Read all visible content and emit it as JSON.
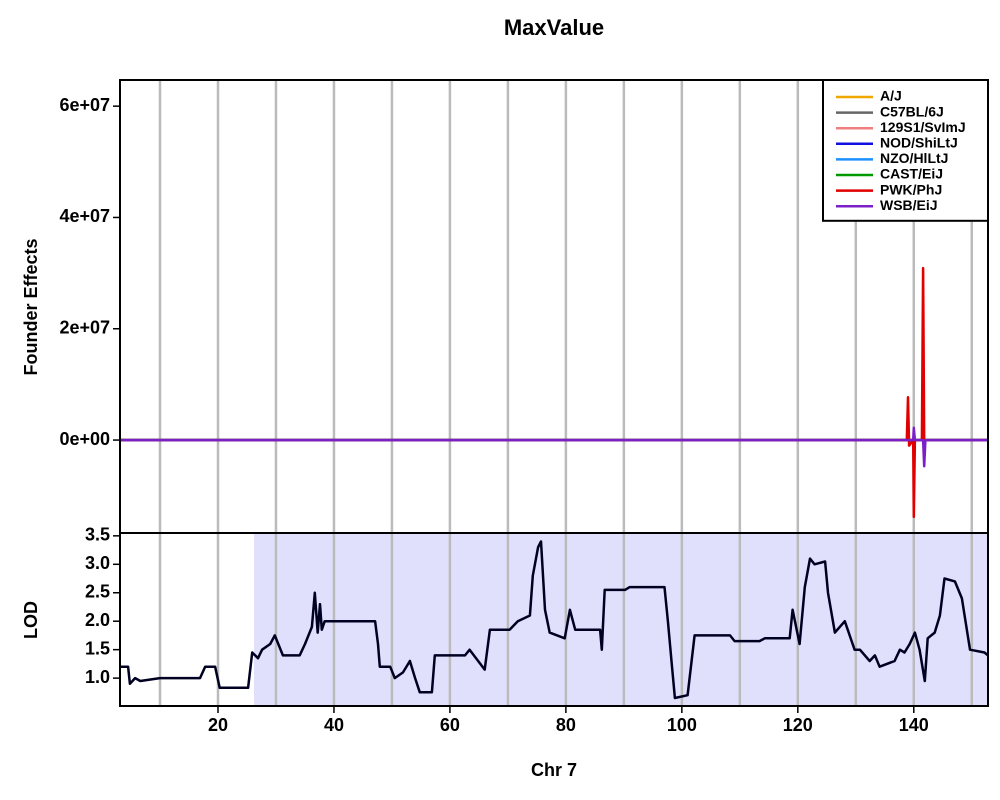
{
  "chart_data": [
    {
      "type": "line",
      "title": "MaxValue",
      "ylabel": "Founder Effects",
      "legend": "topright",
      "grid": true,
      "xlim": [
        3.1,
        152.8
      ],
      "xgrid": [
        10,
        20,
        30,
        40,
        50,
        60,
        70,
        80,
        90,
        100,
        110,
        120,
        130,
        140,
        150
      ],
      "ylim": [
        -16700000,
        64700000
      ],
      "yticks": [
        {
          "value": 0,
          "label": "0e+00"
        },
        {
          "value": 20000000,
          "label": "2e+07"
        },
        {
          "value": 40000000,
          "label": "4e+07"
        },
        {
          "value": 60000000,
          "label": "6e+07"
        }
      ],
      "x": [
        3.1,
        138.8,
        139.0,
        139.2,
        139.9,
        140.0,
        140.2,
        141.4,
        141.6,
        141.8,
        142.0,
        152.8
      ],
      "series": [
        {
          "name": "A/J",
          "color": "#f0a800",
          "values": [
            0,
            0,
            0,
            0,
            0,
            0,
            0,
            0,
            0,
            0,
            0,
            0
          ]
        },
        {
          "name": "C57BL/6J",
          "color": "#666666",
          "values": [
            0,
            0,
            0,
            0,
            0,
            0,
            0,
            0,
            0,
            0,
            0,
            0
          ]
        },
        {
          "name": "129S1/SvImJ",
          "color": "#f08080",
          "values": [
            0,
            0,
            0,
            0,
            0,
            0,
            0,
            0,
            0,
            0,
            0,
            0
          ]
        },
        {
          "name": "NOD/ShiLtJ",
          "color": "#1010e0",
          "values": [
            0,
            0,
            0,
            0,
            0,
            0,
            0,
            0,
            0,
            0,
            0,
            0
          ]
        },
        {
          "name": "NZO/HlLtJ",
          "color": "#1e90ff",
          "values": [
            0,
            0,
            0,
            0,
            0,
            0,
            0,
            0,
            0,
            0,
            0,
            0
          ]
        },
        {
          "name": "CAST/EiJ",
          "color": "#009900",
          "values": [
            0,
            0,
            0,
            0,
            0,
            0,
            0,
            0,
            0,
            0,
            0,
            0
          ]
        },
        {
          "name": "PWK/PhJ",
          "color": "#e00000",
          "values": [
            0,
            0,
            7700000,
            -1000000,
            0,
            -13800000,
            0,
            0,
            30900000,
            -500000,
            0,
            0
          ]
        },
        {
          "name": "WSB/EiJ",
          "color": "#7b20c8",
          "values": [
            0,
            0,
            0,
            0,
            0,
            2200000,
            0,
            0,
            0,
            -4700000,
            0,
            0
          ]
        }
      ]
    },
    {
      "type": "line",
      "ylabel": "LOD",
      "xlabel": "Chr 7",
      "grid": true,
      "color": "#000022",
      "shaded_region": {
        "from": 26.2,
        "to": 152.8,
        "color": "#e0e0fc"
      },
      "xlim": [
        3.1,
        152.8
      ],
      "xgrid": [
        10,
        20,
        30,
        40,
        50,
        60,
        70,
        80,
        90,
        100,
        110,
        120,
        130,
        140,
        150
      ],
      "xticks": [
        20,
        40,
        60,
        80,
        100,
        120,
        140
      ],
      "ylim": [
        0.51,
        3.55
      ],
      "yticks": [
        {
          "value": 1,
          "label": "1.0"
        },
        1.5,
        {
          "value": 2,
          "label": "2.0"
        },
        2.5,
        {
          "value": 3,
          "label": "3.0"
        },
        3.5
      ],
      "x": [
        3.1,
        4.5,
        4.8,
        5.7,
        6.6,
        10,
        16.9,
        17.8,
        19.5,
        20.3,
        25.2,
        25.9,
        26.9,
        27.6,
        29,
        29.8,
        31.2,
        34.1,
        35,
        36.2,
        36.7,
        37.2,
        37.6,
        37.9,
        38.4,
        47.1,
        47.6,
        47.9,
        49.7,
        50.5,
        51.9,
        53.1,
        54,
        54.8,
        56.9,
        57.4,
        62.6,
        63.4,
        66,
        66.9,
        70.3,
        71.7,
        73.8,
        74.3,
        75.2,
        75.7,
        76.4,
        77.2,
        79.8,
        80.7,
        81.6,
        85.9,
        86.2,
        86.7,
        90.2,
        91,
        97,
        97.6,
        98.3,
        98.8,
        101,
        102.2,
        108.3,
        109.1,
        113.4,
        114.3,
        118.6,
        119.1,
        120.3,
        121.2,
        122.1,
        122.9,
        124.7,
        125.2,
        126.4,
        128.1,
        129.8,
        130.7,
        132.4,
        133.3,
        134.1,
        136.7,
        137.6,
        138.4,
        139.3,
        140.2,
        141,
        141.9,
        142.4,
        143.6,
        144.5,
        145.3,
        147.1,
        148.3,
        149.7,
        152.2,
        152.8
      ],
      "values": [
        1.2,
        1.2,
        0.9,
        1.0,
        0.95,
        1.0,
        1.0,
        1.2,
        1.2,
        0.83,
        0.83,
        1.45,
        1.35,
        1.5,
        1.6,
        1.75,
        1.4,
        1.4,
        1.6,
        1.9,
        2.5,
        1.8,
        2.3,
        1.85,
        2.0,
        2.0,
        1.6,
        1.2,
        1.2,
        1.0,
        1.1,
        1.3,
        1.0,
        0.75,
        0.75,
        1.4,
        1.4,
        1.5,
        1.15,
        1.85,
        1.85,
        2.0,
        2.1,
        2.8,
        3.3,
        3.4,
        2.2,
        1.8,
        1.7,
        2.2,
        1.85,
        1.85,
        1.5,
        2.55,
        2.55,
        2.6,
        2.6,
        2.0,
        1.2,
        0.65,
        0.7,
        1.75,
        1.75,
        1.65,
        1.65,
        1.7,
        1.7,
        2.2,
        1.6,
        2.6,
        3.1,
        3.0,
        3.05,
        2.5,
        1.8,
        2.0,
        1.5,
        1.5,
        1.3,
        1.4,
        1.2,
        1.3,
        1.5,
        1.45,
        1.6,
        1.8,
        1.5,
        0.95,
        1.7,
        1.8,
        2.1,
        2.75,
        2.7,
        2.4,
        1.5,
        1.45,
        1.4
      ]
    }
  ]
}
